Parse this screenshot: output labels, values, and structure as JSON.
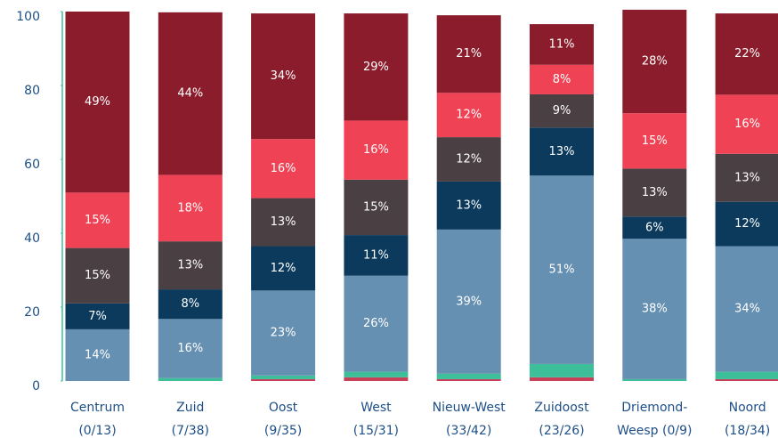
{
  "chart_data": {
    "type": "stacked_bar",
    "categories": [
      [
        "Centrum",
        "(0/13)"
      ],
      [
        "Zuid",
        "(7/38)"
      ],
      [
        "Oost",
        "(9/35)"
      ],
      [
        "West",
        "(15/31)"
      ],
      [
        "Nieuw-West",
        "(33/42)"
      ],
      [
        "Zuidoost",
        "(23/26)"
      ],
      [
        "Driemond-",
        "Weesp (0/9)"
      ],
      [
        "Noord",
        "(18/34)"
      ]
    ],
    "series": [
      {
        "color": "#c8405a",
        "values": [
          0,
          0,
          0.5,
          1,
          0.5,
          1,
          0,
          0.5
        ],
        "value_labels": [
          null,
          null,
          null,
          null,
          null,
          null,
          null,
          null
        ]
      },
      {
        "color": "#3dbf9a",
        "values": [
          0,
          0.8,
          1,
          1.5,
          1.5,
          3.6,
          0.5,
          2
        ],
        "value_labels": [
          null,
          null,
          null,
          null,
          null,
          null,
          null,
          null
        ]
      },
      {
        "color": "#6690b2",
        "values": [
          14,
          16,
          23,
          26,
          39,
          51,
          38,
          34
        ],
        "value_labels": [
          "14%",
          "16%",
          "23%",
          "26%",
          "39%",
          "51%",
          "38%",
          "34%"
        ]
      },
      {
        "color": "#0b3a5c",
        "values": [
          7,
          8,
          12,
          11,
          13,
          13,
          6,
          12
        ],
        "value_labels": [
          "7%",
          "8%",
          "12%",
          "11%",
          "13%",
          "13%",
          "6%",
          "12%"
        ]
      },
      {
        "color": "#4a3f43",
        "values": [
          15,
          13,
          13,
          15,
          12,
          9,
          13,
          13
        ],
        "value_labels": [
          "15%",
          "13%",
          "13%",
          "15%",
          "12%",
          "9%",
          "13%",
          "13%"
        ]
      },
      {
        "color": "#ef4254",
        "values": [
          15,
          18,
          16,
          16,
          12,
          8,
          15,
          16
        ],
        "value_labels": [
          "15%",
          "18%",
          "16%",
          "16%",
          "12%",
          "8%",
          "15%",
          "16%"
        ]
      },
      {
        "color": "#8a1c2b",
        "values": [
          49,
          44,
          34,
          29,
          21,
          11,
          28,
          22
        ],
        "value_labels": [
          "49%",
          "44%",
          "34%",
          "29%",
          "21%",
          "11%",
          "28%",
          "22%"
        ]
      }
    ],
    "ylim": [
      0,
      100
    ],
    "yticks": [
      0,
      20,
      40,
      60,
      80,
      100
    ]
  }
}
